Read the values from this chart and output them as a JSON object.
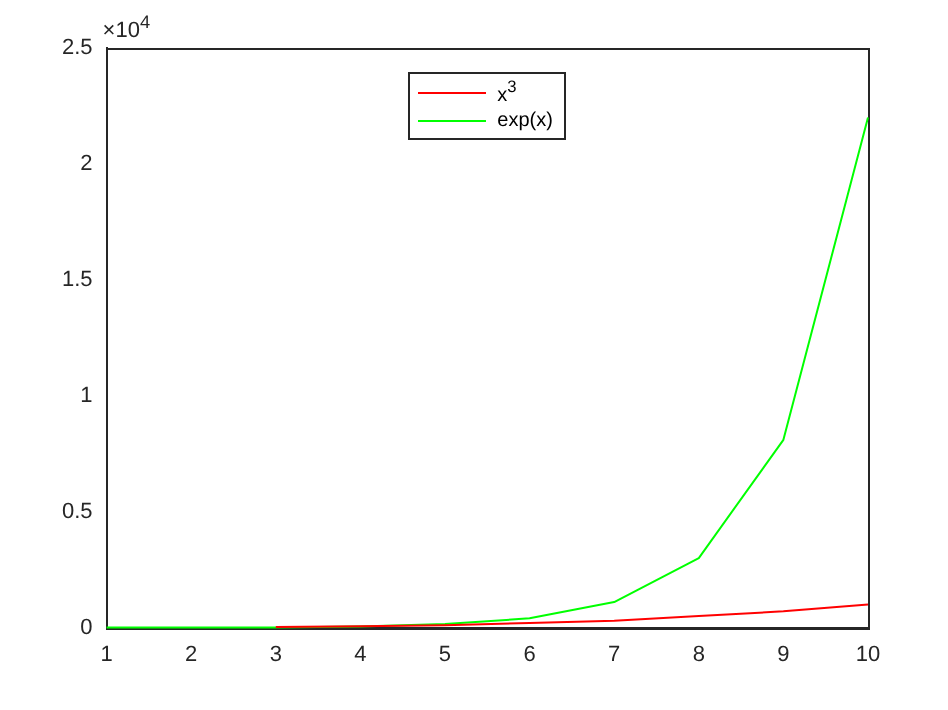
{
  "chart_data": {
    "type": "line",
    "x": [
      1,
      2,
      3,
      4,
      5,
      6,
      7,
      8,
      9,
      10
    ],
    "series": [
      {
        "name": "x$^{3}$",
        "color": "#ff0000",
        "values": [
          null,
          null,
          0.003,
          0.006,
          0.01,
          0.02,
          0.03,
          0.05,
          0.07,
          0.1
        ]
      },
      {
        "name": "exp(x)",
        "color": "#00ff00",
        "values": [
          0,
          0,
          0,
          0.005,
          0.015,
          0.04,
          0.11,
          0.3,
          0.81,
          2.2
        ]
      }
    ],
    "xlim": [
      1,
      10
    ],
    "xticks": [
      1,
      2,
      3,
      4,
      5,
      6,
      7,
      8,
      9,
      10
    ],
    "ylim": [
      0,
      2.5
    ],
    "yticks": [
      0,
      0.5,
      1,
      1.5,
      2,
      2.5
    ],
    "annotations": [
      "×10$^{4}$"
    ],
    "legend": "top",
    "marker": "none",
    "line_style": "solid",
    "grid": false
  }
}
